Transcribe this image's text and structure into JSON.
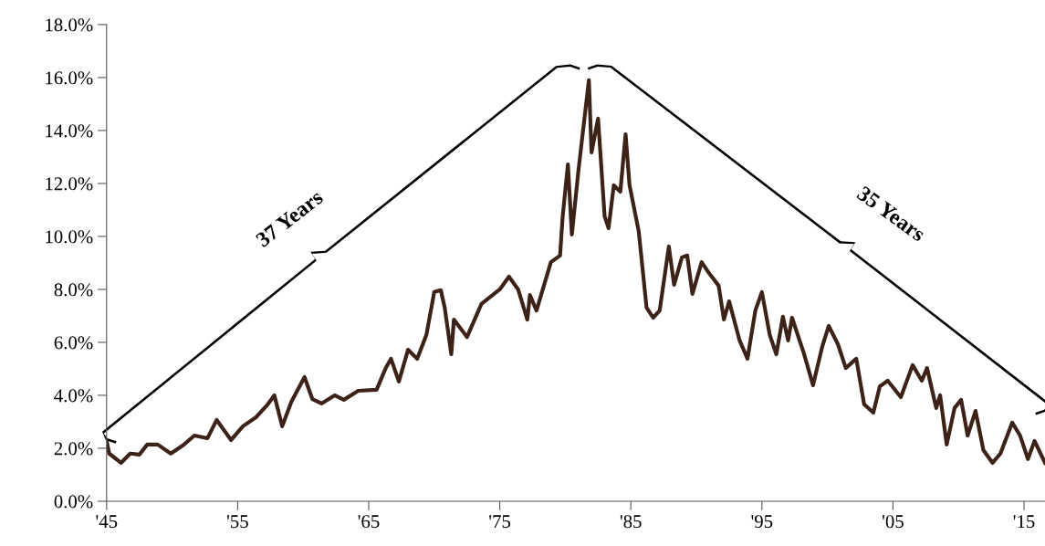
{
  "chart_data": {
    "type": "line",
    "x": [
      1945.0,
      1945.2,
      1946.1,
      1946.8,
      1947.5,
      1948.1,
      1948.9,
      1949.9,
      1950.8,
      1951.7,
      1952.7,
      1953.4,
      1954.5,
      1955.4,
      1956.4,
      1957.3,
      1957.8,
      1958.4,
      1959.1,
      1960.1,
      1960.7,
      1961.4,
      1962.4,
      1963.1,
      1964.2,
      1965.6,
      1966.3,
      1966.7,
      1967.3,
      1968.0,
      1968.7,
      1969.4,
      1970.0,
      1970.5,
      1970.8,
      1971.3,
      1971.5,
      1972.5,
      1973.6,
      1975.0,
      1975.7,
      1976.4,
      1977.1,
      1977.3,
      1977.8,
      1978.9,
      1979.6,
      1979.8,
      1980.2,
      1980.5,
      1981.0,
      1981.4,
      1981.8,
      1982.0,
      1982.5,
      1983.0,
      1983.3,
      1983.7,
      1984.2,
      1984.6,
      1984.9,
      1985.6,
      1986.2,
      1986.7,
      1987.2,
      1987.9,
      1988.3,
      1988.9,
      1989.3,
      1989.7,
      1990.4,
      1991.0,
      1991.7,
      1992.1,
      1992.5,
      1993.3,
      1993.9,
      1994.5,
      1995.0,
      1995.6,
      1996.1,
      1996.6,
      1997.0,
      1997.3,
      1998.2,
      1998.9,
      1999.6,
      2000.1,
      2000.8,
      2001.4,
      2002.2,
      2002.8,
      2003.5,
      2004.0,
      2004.6,
      2005.6,
      2006.5,
      2007.2,
      2007.6,
      2008.3,
      2008.6,
      2009.1,
      2009.7,
      2010.2,
      2010.7,
      2011.3,
      2011.9,
      2012.6,
      2013.2,
      2014.1,
      2014.7,
      2015.3,
      2015.8,
      2016.6
    ],
    "series": [
      {
        "color": "#3d2217",
        "values": [
          2.28,
          1.8,
          1.45,
          1.8,
          1.76,
          2.14,
          2.14,
          1.8,
          2.1,
          2.48,
          2.38,
          3.07,
          2.31,
          2.83,
          3.17,
          3.66,
          4.0,
          2.83,
          3.76,
          4.69,
          3.86,
          3.69,
          4.0,
          3.83,
          4.17,
          4.21,
          5.03,
          5.38,
          4.52,
          5.72,
          5.38,
          6.28,
          7.9,
          7.97,
          7.31,
          5.55,
          6.86,
          6.2,
          7.45,
          8.0,
          8.48,
          8.0,
          6.86,
          7.79,
          7.2,
          9.03,
          9.28,
          10.76,
          12.72,
          10.07,
          12.48,
          14.2,
          15.9,
          13.17,
          14.45,
          10.76,
          10.31,
          11.93,
          11.69,
          13.86,
          11.93,
          10.2,
          7.31,
          6.93,
          7.2,
          9.62,
          8.17,
          9.21,
          9.28,
          7.83,
          9.03,
          8.59,
          8.14,
          6.86,
          7.55,
          6.07,
          5.38,
          7.2,
          7.9,
          6.28,
          5.55,
          6.97,
          6.07,
          6.93,
          5.59,
          4.38,
          5.83,
          6.62,
          5.93,
          5.03,
          5.38,
          3.66,
          3.34,
          4.34,
          4.55,
          3.93,
          5.14,
          4.55,
          5.03,
          3.52,
          4.0,
          2.14,
          3.52,
          3.83,
          2.48,
          3.41,
          1.93,
          1.45,
          1.8,
          2.97,
          2.48,
          1.59,
          2.28,
          1.45
        ]
      }
    ],
    "xlim": [
      1945,
      2016.6
    ],
    "xticks": [
      {
        "value": 1945,
        "label": "'45"
      },
      {
        "value": 1955,
        "label": "'55"
      },
      {
        "value": 1965,
        "label": "'65"
      },
      {
        "value": 1975,
        "label": "'75"
      },
      {
        "value": 1985,
        "label": "'85"
      },
      {
        "value": 1995,
        "label": "'95"
      },
      {
        "value": 2005,
        "label": "'05"
      },
      {
        "value": 2015,
        "label": "'15"
      }
    ],
    "ylim": [
      0,
      18
    ],
    "yticks": [
      {
        "value": 0,
        "label": "0.0%"
      },
      {
        "value": 2,
        "label": "2.0%"
      },
      {
        "value": 4,
        "label": "4.0%"
      },
      {
        "value": 6,
        "label": "6.0%"
      },
      {
        "value": 8,
        "label": "8.0%"
      },
      {
        "value": 10,
        "label": "10.0%"
      },
      {
        "value": 12,
        "label": "12.0%"
      },
      {
        "value": 14,
        "label": "14.0%"
      },
      {
        "value": 16,
        "label": "16.0%"
      },
      {
        "value": 18,
        "label": "18.0%"
      }
    ],
    "annotations": [
      "37 Years",
      "35 Years"
    ],
    "grid": false,
    "marker": "none",
    "line_style": "solid"
  }
}
